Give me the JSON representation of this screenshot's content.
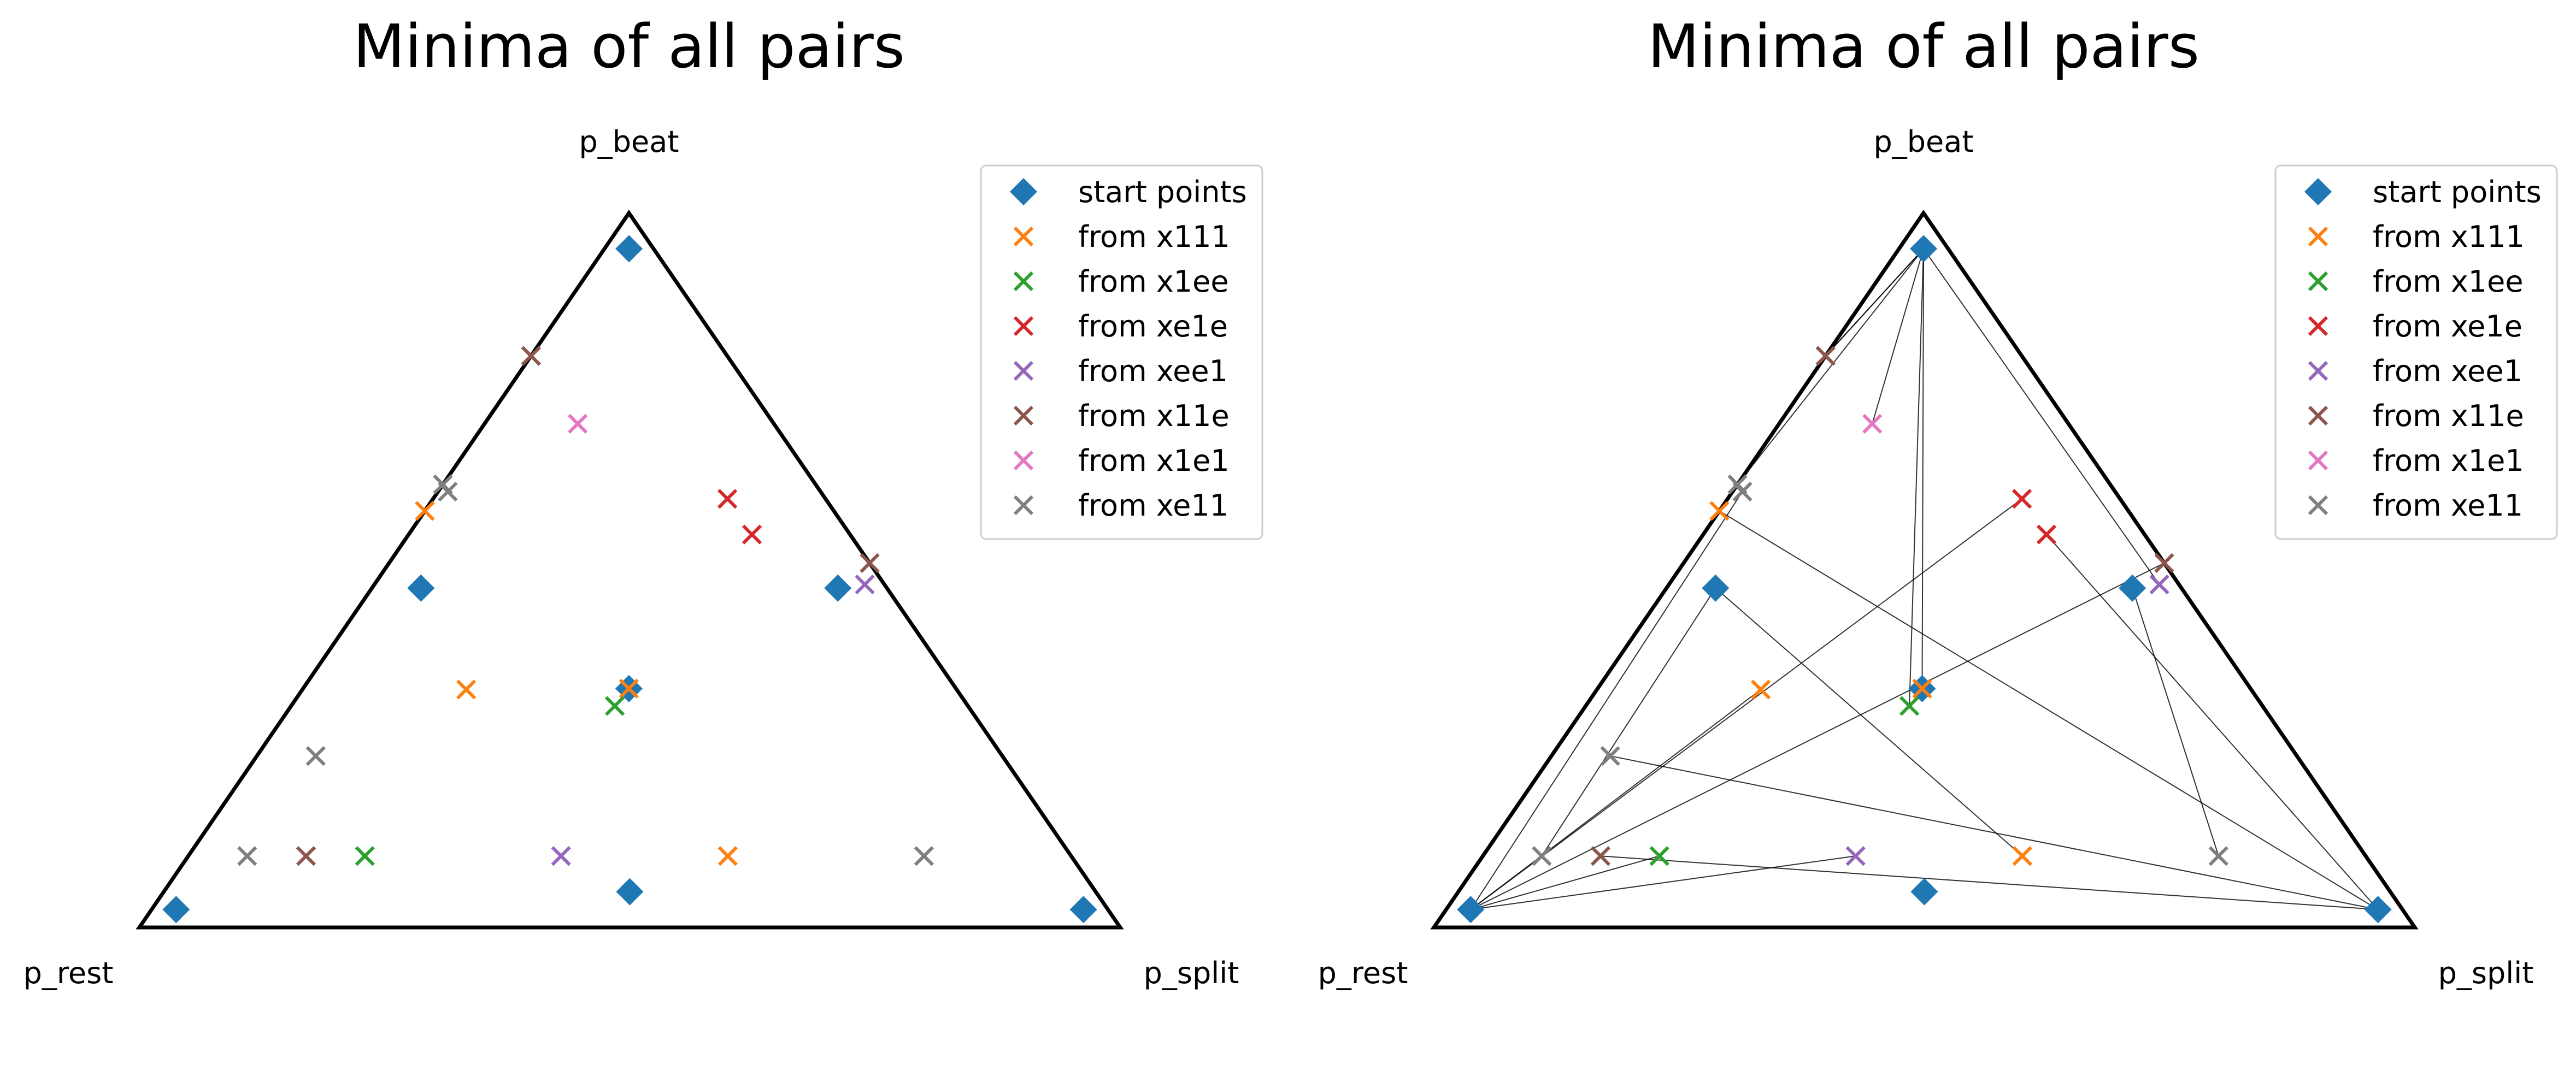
{
  "chart_data": [
    {
      "type": "scatter",
      "subtype": "ternary",
      "title": "Minima of all pairs",
      "vertex_labels": {
        "top": "p_beat",
        "left": "p_rest",
        "right": "p_split"
      },
      "coordinates": "barycentric [p_beat, p_rest, p_split]",
      "show_connections": false,
      "legend": {
        "location": "top-right"
      },
      "series": [
        {
          "name": "start points",
          "marker": "diamond",
          "color": "#1f77b4",
          "points": [
            [
              0.95,
              0.025,
              0.025
            ],
            [
              0.025,
              0.95,
              0.025
            ],
            [
              0.025,
              0.025,
              0.95
            ],
            [
              0.475,
              0.475,
              0.05
            ],
            [
              0.475,
              0.05,
              0.475
            ],
            [
              0.05,
              0.475,
              0.475
            ],
            [
              0.333,
              0.333,
              0.333
            ]
          ]
        },
        {
          "name": "from x111",
          "marker": "x",
          "color": "#ff7f0e",
          "points": [
            [
              0.333,
              0.333,
              0.333
            ],
            [
              0.333,
              0.5,
              0.167
            ],
            [
              0.583,
              0.417,
              0.0
            ],
            [
              0.1,
              0.35,
              0.55
            ]
          ]
        },
        {
          "name": "from x1ee",
          "marker": "x",
          "color": "#2ca02c",
          "points": [
            [
              0.31,
              0.36,
              0.33
            ],
            [
              0.1,
              0.72,
              0.18
            ]
          ]
        },
        {
          "name": "from xe1e",
          "marker": "x",
          "color": "#d62728",
          "points": [
            [
              0.8,
              0.2,
              0.0
            ],
            [
              0.6,
              0.1,
              0.3
            ],
            [
              0.55,
              0.1,
              0.35
            ]
          ]
        },
        {
          "name": "from xee1",
          "marker": "x",
          "color": "#9467bd",
          "points": [
            [
              0.48,
              0.02,
              0.5
            ],
            [
              0.1,
              0.52,
              0.38
            ]
          ]
        },
        {
          "name": "from x11e",
          "marker": "x",
          "color": "#8c564b",
          "points": [
            [
              0.8,
              0.2,
              0.0
            ],
            [
              0.51,
              0.0,
              0.49
            ],
            [
              0.1,
              0.78,
              0.12
            ]
          ]
        },
        {
          "name": "from x1e1",
          "marker": "x",
          "color": "#e377c2",
          "points": [
            [
              0.705,
              0.2,
              0.095
            ]
          ]
        },
        {
          "name": "from xe11",
          "marker": "x",
          "color": "#7f7f7f",
          "points": [
            [
              0.62,
              0.38,
              0.0
            ],
            [
              0.61,
              0.38,
              0.01
            ],
            [
              0.24,
              0.7,
              0.06
            ],
            [
              0.1,
              0.84,
              0.06
            ],
            [
              0.1,
              0.15,
              0.75
            ]
          ]
        }
      ]
    },
    {
      "type": "scatter",
      "subtype": "ternary",
      "title": "Minima of all pairs",
      "vertex_labels": {
        "top": "p_beat",
        "left": "p_rest",
        "right": "p_split"
      },
      "coordinates": "barycentric [p_beat, p_rest, p_split]",
      "show_connections": true,
      "connections": "thin black lines from each start point to the minima reached from it",
      "legend": {
        "location": "top-right"
      },
      "series": [
        {
          "name": "start points",
          "marker": "diamond",
          "color": "#1f77b4",
          "points": [
            [
              0.95,
              0.025,
              0.025
            ],
            [
              0.025,
              0.95,
              0.025
            ],
            [
              0.025,
              0.025,
              0.95
            ],
            [
              0.475,
              0.475,
              0.05
            ],
            [
              0.475,
              0.05,
              0.475
            ],
            [
              0.05,
              0.475,
              0.475
            ],
            [
              0.333,
              0.333,
              0.333
            ]
          ]
        },
        {
          "name": "from x111",
          "marker": "x",
          "color": "#ff7f0e",
          "points": [
            [
              0.333,
              0.333,
              0.333
            ],
            [
              0.333,
              0.5,
              0.167
            ],
            [
              0.583,
              0.417,
              0.0
            ],
            [
              0.1,
              0.35,
              0.55
            ]
          ]
        },
        {
          "name": "from x1ee",
          "marker": "x",
          "color": "#2ca02c",
          "points": [
            [
              0.31,
              0.36,
              0.33
            ],
            [
              0.1,
              0.72,
              0.18
            ]
          ]
        },
        {
          "name": "from xe1e",
          "marker": "x",
          "color": "#d62728",
          "points": [
            [
              0.8,
              0.2,
              0.0
            ],
            [
              0.6,
              0.1,
              0.3
            ],
            [
              0.55,
              0.1,
              0.35
            ]
          ]
        },
        {
          "name": "from xee1",
          "marker": "x",
          "color": "#9467bd",
          "points": [
            [
              0.48,
              0.02,
              0.5
            ],
            [
              0.1,
              0.52,
              0.38
            ]
          ]
        },
        {
          "name": "from x11e",
          "marker": "x",
          "color": "#8c564b",
          "points": [
            [
              0.8,
              0.2,
              0.0
            ],
            [
              0.51,
              0.0,
              0.49
            ],
            [
              0.1,
              0.78,
              0.12
            ]
          ]
        },
        {
          "name": "from x1e1",
          "marker": "x",
          "color": "#e377c2",
          "points": [
            [
              0.705,
              0.2,
              0.095
            ]
          ]
        },
        {
          "name": "from xe11",
          "marker": "x",
          "color": "#7f7f7f",
          "points": [
            [
              0.62,
              0.38,
              0.0
            ],
            [
              0.61,
              0.38,
              0.01
            ],
            [
              0.24,
              0.7,
              0.06
            ],
            [
              0.1,
              0.84,
              0.06
            ],
            [
              0.1,
              0.15,
              0.75
            ]
          ]
        }
      ]
    }
  ]
}
